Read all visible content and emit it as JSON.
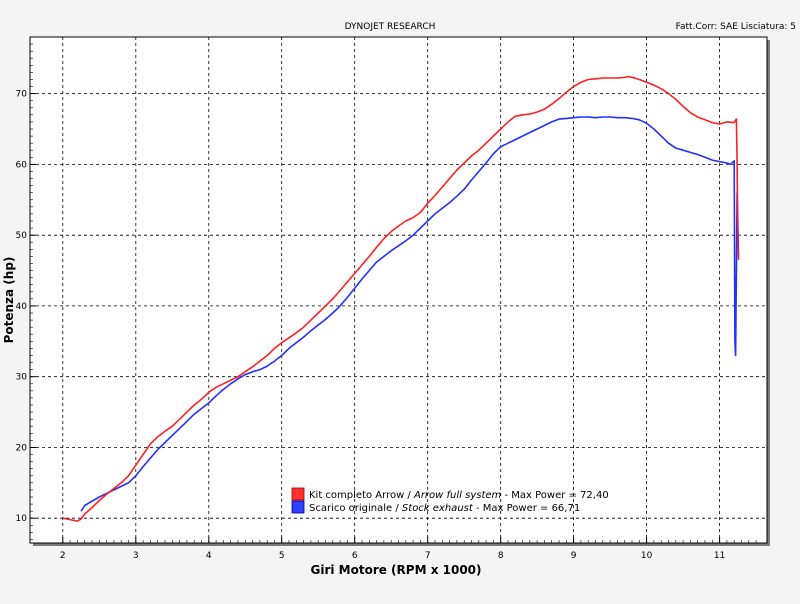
{
  "header": {
    "title": "DYNOJET RESEARCH",
    "settings": "Fatt.Corr: SAE  Lisciatura: 5"
  },
  "chart_data": {
    "type": "line",
    "title": "DYNOJET RESEARCH",
    "xlabel": "Giri Motore (RPM x 1000)",
    "ylabel": "Potenza (hp)",
    "xlim": [
      1.55,
      11.65
    ],
    "ylim": [
      6.5,
      78
    ],
    "x_ticks": [
      2,
      3,
      4,
      5,
      6,
      7,
      8,
      9,
      10,
      11
    ],
    "y_ticks": [
      10,
      20,
      30,
      40,
      50,
      60,
      70
    ],
    "grid": true,
    "legend_position": "bottom-center",
    "series": [
      {
        "name": "Kit completo Arrow / Arrow full system",
        "label_plain": "Kit completo Arrow / ",
        "label_italic": "Arrow full system",
        "label_suffix": " - Max Power = 72,40",
        "color": "#ff2020",
        "x": [
          2.0,
          2.1,
          2.2,
          2.25,
          2.3,
          2.4,
          2.5,
          2.6,
          2.7,
          2.8,
          2.9,
          3.0,
          3.1,
          3.2,
          3.3,
          3.4,
          3.5,
          3.6,
          3.7,
          3.8,
          3.9,
          4.0,
          4.1,
          4.2,
          4.3,
          4.4,
          4.5,
          4.6,
          4.7,
          4.8,
          4.9,
          5.0,
          5.1,
          5.2,
          5.3,
          5.4,
          5.5,
          5.6,
          5.7,
          5.8,
          5.9,
          6.0,
          6.1,
          6.2,
          6.3,
          6.4,
          6.5,
          6.6,
          6.7,
          6.8,
          6.9,
          7.0,
          7.1,
          7.2,
          7.3,
          7.4,
          7.5,
          7.6,
          7.7,
          7.8,
          7.9,
          8.0,
          8.1,
          8.2,
          8.3,
          8.4,
          8.5,
          8.6,
          8.7,
          8.8,
          8.9,
          9.0,
          9.1,
          9.2,
          9.3,
          9.4,
          9.5,
          9.6,
          9.7,
          9.75,
          9.8,
          9.9,
          10.0,
          10.1,
          10.2,
          10.3,
          10.4,
          10.5,
          10.6,
          10.7,
          10.8,
          10.9,
          11.0,
          11.1,
          11.2,
          11.23,
          11.24,
          11.25,
          11.26
        ],
        "values": [
          10.0,
          9.8,
          9.6,
          9.9,
          10.6,
          11.5,
          12.5,
          13.4,
          14.2,
          15.0,
          16.0,
          17.5,
          19.0,
          20.5,
          21.5,
          22.3,
          23.0,
          24.0,
          25.0,
          26.0,
          26.8,
          27.8,
          28.5,
          29.0,
          29.5,
          30.0,
          30.7,
          31.4,
          32.2,
          33.0,
          34.0,
          34.8,
          35.5,
          36.2,
          37.0,
          38.0,
          39.0,
          40.0,
          41.0,
          42.2,
          43.4,
          44.6,
          45.8,
          47.0,
          48.3,
          49.5,
          50.5,
          51.3,
          52.0,
          52.5,
          53.2,
          54.5,
          55.6,
          56.8,
          58.0,
          59.2,
          60.2,
          61.2,
          62.0,
          63.0,
          64.0,
          65.0,
          66.0,
          66.8,
          67.0,
          67.1,
          67.4,
          67.8,
          68.5,
          69.3,
          70.2,
          71.0,
          71.6,
          72.0,
          72.1,
          72.2,
          72.2,
          72.2,
          72.3,
          72.4,
          72.3,
          72.0,
          71.6,
          71.2,
          70.7,
          70.0,
          69.2,
          68.2,
          67.3,
          66.7,
          66.3,
          65.9,
          65.7,
          66.0,
          65.9,
          66.4,
          60.0,
          50.0,
          46.5
        ]
      },
      {
        "name": "Scarico originale / Stock exhaust",
        "label_plain": "Scarico originale / ",
        "label_italic": "Stock exhaust",
        "label_suffix": " - Max Power = 66,71",
        "color": "#2030ff",
        "x": [
          2.25,
          2.3,
          2.4,
          2.5,
          2.6,
          2.7,
          2.8,
          2.9,
          3.0,
          3.1,
          3.2,
          3.3,
          3.4,
          3.5,
          3.6,
          3.7,
          3.8,
          3.9,
          4.0,
          4.1,
          4.2,
          4.3,
          4.4,
          4.5,
          4.6,
          4.7,
          4.8,
          4.9,
          5.0,
          5.1,
          5.2,
          5.3,
          5.4,
          5.5,
          5.6,
          5.7,
          5.8,
          5.9,
          6.0,
          6.1,
          6.2,
          6.3,
          6.4,
          6.5,
          6.6,
          6.7,
          6.8,
          6.9,
          7.0,
          7.1,
          7.2,
          7.3,
          7.4,
          7.5,
          7.6,
          7.7,
          7.8,
          7.9,
          8.0,
          8.1,
          8.2,
          8.3,
          8.4,
          8.5,
          8.6,
          8.7,
          8.8,
          8.9,
          9.0,
          9.1,
          9.2,
          9.3,
          9.4,
          9.5,
          9.6,
          9.7,
          9.8,
          9.9,
          10.0,
          10.1,
          10.2,
          10.3,
          10.4,
          10.5,
          10.6,
          10.7,
          10.8,
          10.9,
          11.0,
          11.1,
          11.15,
          11.2,
          11.21,
          11.22,
          11.23,
          11.24,
          11.25,
          11.26
        ],
        "values": [
          11.0,
          11.8,
          12.4,
          13.0,
          13.5,
          14.0,
          14.5,
          15.0,
          16.0,
          17.3,
          18.5,
          19.7,
          20.7,
          21.7,
          22.7,
          23.7,
          24.7,
          25.5,
          26.3,
          27.3,
          28.2,
          29.0,
          29.7,
          30.3,
          30.7,
          31.0,
          31.5,
          32.2,
          33.0,
          34.0,
          34.8,
          35.6,
          36.5,
          37.3,
          38.1,
          39.0,
          40.0,
          41.2,
          42.5,
          43.8,
          45.0,
          46.2,
          47.0,
          47.8,
          48.5,
          49.2,
          50.0,
          51.0,
          52.0,
          53.0,
          53.8,
          54.6,
          55.5,
          56.5,
          57.8,
          59.0,
          60.2,
          61.5,
          62.5,
          63.0,
          63.5,
          64.0,
          64.5,
          65.0,
          65.5,
          66.0,
          66.4,
          66.5,
          66.6,
          66.7,
          66.7,
          66.6,
          66.7,
          66.7,
          66.6,
          66.6,
          66.5,
          66.3,
          65.8,
          65.0,
          64.0,
          63.0,
          62.3,
          62.0,
          61.7,
          61.4,
          61.0,
          60.6,
          60.4,
          60.2,
          60.0,
          60.5,
          35.0,
          33.0,
          45.0,
          56.0,
          52.0,
          47.0
        ]
      }
    ]
  }
}
